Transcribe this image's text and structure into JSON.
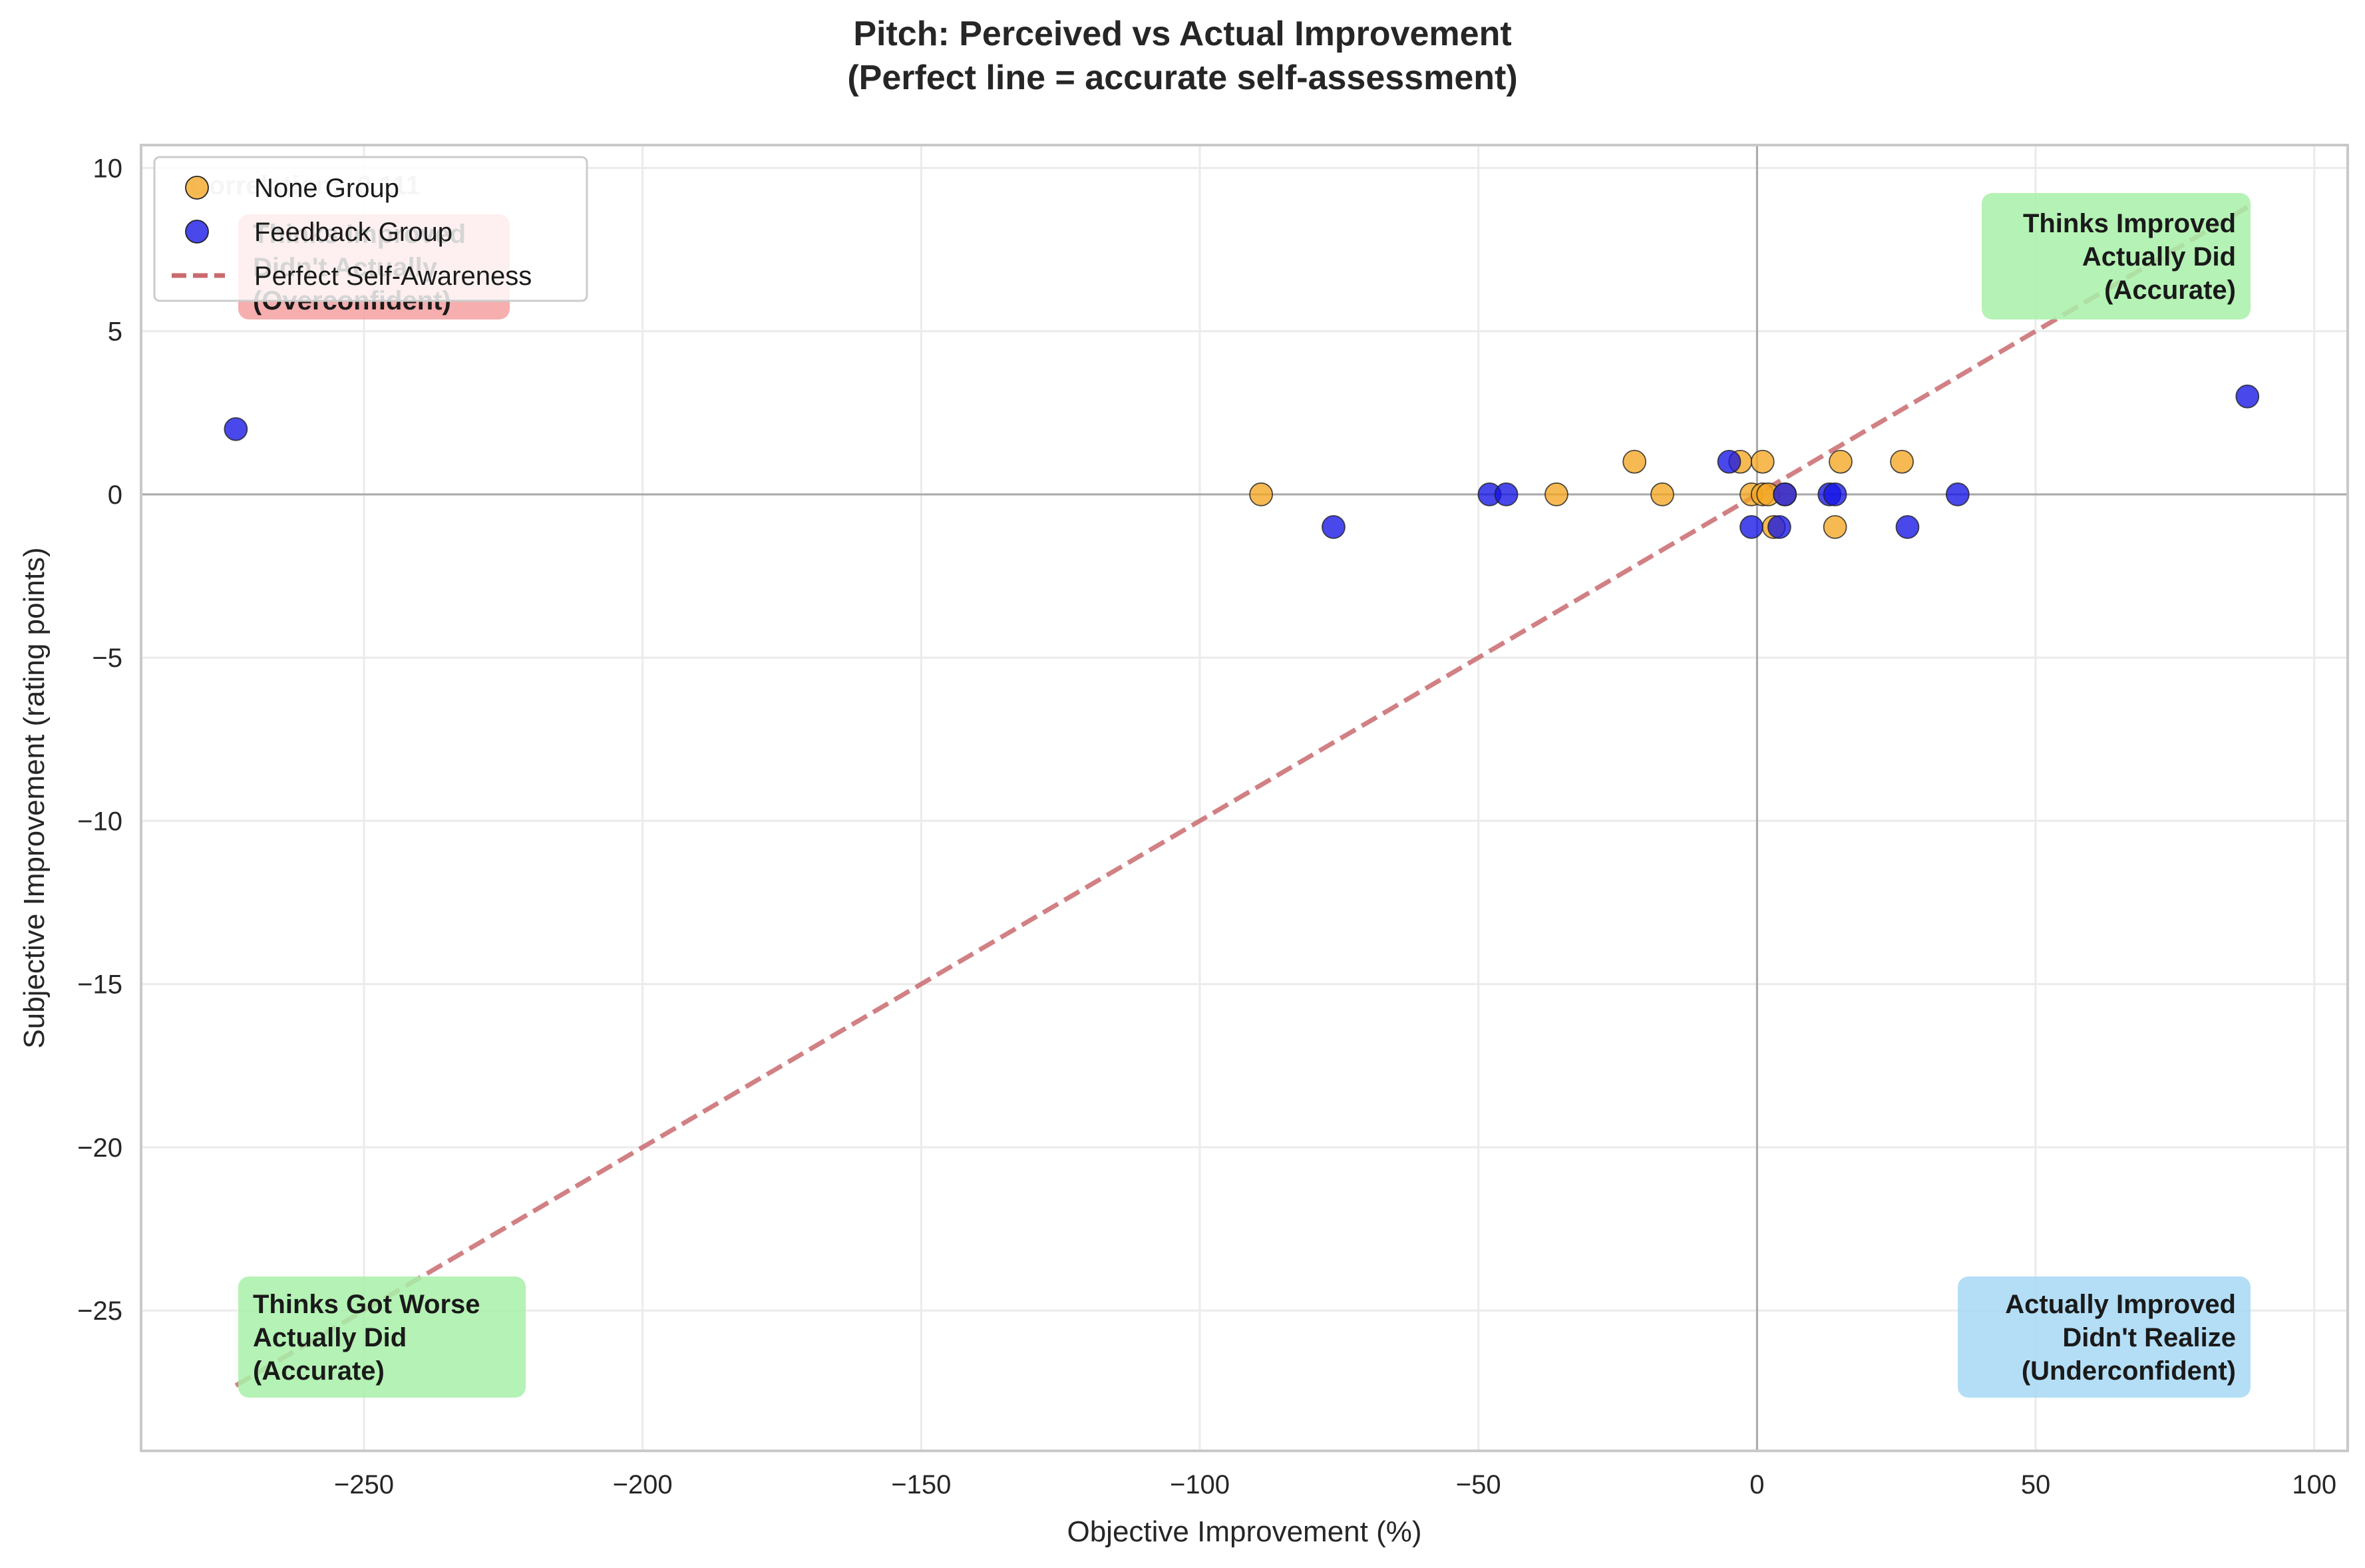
{
  "chart_data": {
    "type": "scatter",
    "title": "Pitch: Perceived vs Actual Improvement",
    "subtitle": "(Perfect line = accurate self-assessment)",
    "xlabel": "Objective Improvement (%)",
    "ylabel": "Subjective Improvement (rating points)",
    "xlim": [
      -290,
      106
    ],
    "ylim": [
      -29.3,
      10.7
    ],
    "xticks": [
      -250,
      -200,
      -150,
      -100,
      -50,
      0,
      50,
      100
    ],
    "yticks": [
      10,
      5,
      0,
      -5,
      -10,
      -15,
      -20,
      -25
    ],
    "grid": true,
    "legend_position": "upper-left",
    "series": [
      {
        "name": "None Group",
        "color": "#f5a623",
        "points": [
          [
            -89,
            0
          ],
          [
            -36,
            0
          ],
          [
            -22,
            1
          ],
          [
            -17,
            0
          ],
          [
            -3,
            1
          ],
          [
            -1,
            0
          ],
          [
            1,
            1
          ],
          [
            1,
            0
          ],
          [
            2,
            0
          ],
          [
            3,
            -1
          ],
          [
            5,
            0
          ],
          [
            14,
            -1
          ],
          [
            15,
            1
          ],
          [
            26,
            1
          ]
        ]
      },
      {
        "name": "Feedback Group",
        "color": "#1515e6",
        "points": [
          [
            -273,
            2
          ],
          [
            -76,
            -1
          ],
          [
            -48,
            0
          ],
          [
            -45,
            0
          ],
          [
            -5,
            1
          ],
          [
            -1,
            -1
          ],
          [
            4,
            -1
          ],
          [
            5,
            0
          ],
          [
            13,
            0
          ],
          [
            14,
            0
          ],
          [
            27,
            -1
          ],
          [
            36,
            0
          ],
          [
            88,
            3
          ]
        ]
      }
    ],
    "reference_line": {
      "name": "Perfect Self-Awareness",
      "color": "#c96a6e",
      "style": "dashed",
      "from": [
        -273,
        -27.3
      ],
      "to": [
        88,
        8.8
      ]
    },
    "annotations": [
      {
        "lines": [
          "Correlation: -0.111"
        ],
        "corner": "top-left-text"
      },
      {
        "lines": [
          "Thinks Improved",
          "Didn't Actually",
          "(Overconfident)"
        ],
        "corner": "top-left",
        "bg": "#f4a0a0"
      },
      {
        "lines": [
          "Thinks Improved",
          "Actually Did",
          "(Accurate)"
        ],
        "corner": "top-right",
        "bg": "#a8f0a8"
      },
      {
        "lines": [
          "Thinks Got Worse",
          "Actually Did",
          "(Accurate)"
        ],
        "corner": "bottom-left",
        "bg": "#a8f0a8"
      },
      {
        "lines": [
          "Actually Improved",
          "Didn't Realize",
          "(Underconfident)"
        ],
        "corner": "bottom-right",
        "bg": "#a6d8f5"
      }
    ]
  }
}
